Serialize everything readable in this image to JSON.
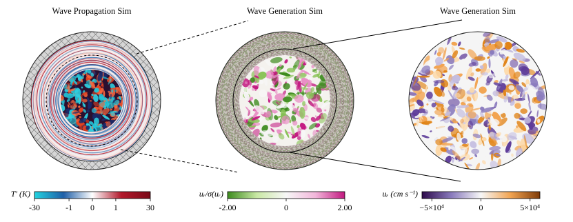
{
  "panels": [
    {
      "title": "Wave Propagation Sim",
      "colorbar": {
        "label": "T′ (K)",
        "scale": "symlog",
        "linthresh": 1,
        "lim": [
          -30,
          30
        ],
        "ticks": [
          -30,
          -1,
          0,
          1,
          30
        ],
        "colors": [
          "#22d3e0",
          "#1f5fa8",
          "#ffffff",
          "#b2182b",
          "#7a0a18"
        ]
      }
    },
    {
      "title": "Wave Generation Sim",
      "colorbar": {
        "label": "uᵣ/σ(uᵣ)",
        "scale": "linear",
        "lim": [
          -2,
          2
        ],
        "ticks": [
          {
            "value": -2,
            "label": "-2.00"
          },
          0,
          {
            "value": 2,
            "label": "2.00"
          }
        ],
        "colors": [
          "#3d8b1e",
          "#c9e8a4",
          "#f7f7f7",
          "#f2b6da",
          "#c2187f"
        ]
      }
    },
    {
      "title": "Wave Generation Sim",
      "colorbar": {
        "label": "uᵣ (cm s⁻¹)",
        "scale": "linear",
        "lim": [
          -60000,
          60000
        ],
        "ticks": [
          {
            "value": -50000,
            "label": "−5×10⁴"
          },
          0,
          {
            "value": 50000,
            "label": "5×10⁴"
          }
        ],
        "colors": [
          "#2d0a4b",
          "#8a7bbd",
          "#f7f7f7",
          "#f2a451",
          "#7f3b08"
        ]
      }
    }
  ]
}
